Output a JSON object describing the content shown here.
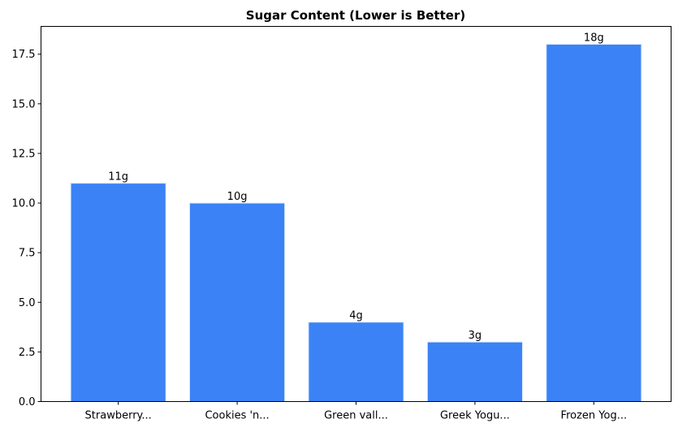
{
  "chart_data": {
    "type": "bar",
    "title": "Sugar Content (Lower is Better)",
    "xlabel": "",
    "ylabel": "",
    "categories": [
      "Strawberry...",
      "Cookies 'n...",
      "Green vall...",
      "Greek Yogu...",
      "Frozen Yog..."
    ],
    "values": [
      11,
      10,
      4,
      3,
      18
    ],
    "data_labels": [
      "11g",
      "10g",
      "4g",
      "3g",
      "18g"
    ],
    "ylim": [
      0,
      18.9
    ],
    "yticks": [
      0,
      2.5,
      5,
      7.5,
      10,
      12.5,
      15,
      17.5
    ],
    "ytick_labels": [
      "0.0",
      "2.5",
      "5.0",
      "7.5",
      "10.0",
      "12.5",
      "15.0",
      "17.5"
    ],
    "grid": false,
    "bar_color": "#3b82f6",
    "edge_color": "#dbeafe"
  }
}
